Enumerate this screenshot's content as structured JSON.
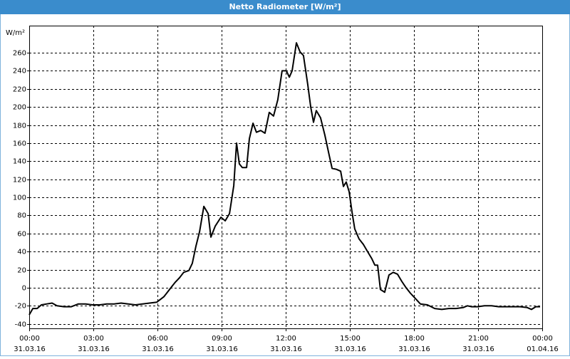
{
  "chart_data": {
    "type": "line",
    "title": "Netto Radiometer [W/m²]",
    "y_unit": "W/m²",
    "x": [
      0,
      0.17,
      0.37,
      0.57,
      0.83,
      1.07,
      1.3,
      1.63,
      1.97,
      2.3,
      2.63,
      2.97,
      3.3,
      3.63,
      3.97,
      4.3,
      4.63,
      4.97,
      5.3,
      5.63,
      5.97,
      6.3,
      6.63,
      6.83,
      7.03,
      7.23,
      7.47,
      7.63,
      7.8,
      7.97,
      8.17,
      8.37,
      8.5,
      8.7,
      8.97,
      9.17,
      9.37,
      9.57,
      9.7,
      9.83,
      9.97,
      10.17,
      10.3,
      10.47,
      10.63,
      10.83,
      11.03,
      11.23,
      11.43,
      11.63,
      11.83,
      12.03,
      12.17,
      12.3,
      12.5,
      12.67,
      12.83,
      13.03,
      13.17,
      13.3,
      13.43,
      13.63,
      13.83,
      14.03,
      14.17,
      14.37,
      14.57,
      14.7,
      14.83,
      14.97,
      15.1,
      15.23,
      15.43,
      15.63,
      15.83,
      16.03,
      16.17,
      16.3,
      16.43,
      16.63,
      16.83,
      17.03,
      17.23,
      17.43,
      17.63,
      17.83,
      18.03,
      18.3,
      18.63,
      18.97,
      19.3,
      19.63,
      19.97,
      20.3,
      20.5,
      20.7,
      20.97,
      21.3,
      21.63,
      21.97,
      22.3,
      22.63,
      22.97,
      23.3,
      23.5,
      23.7,
      23.9
    ],
    "values": [
      -30,
      -23,
      -23,
      -19,
      -18,
      -17,
      -20,
      -21,
      -21,
      -18,
      -18,
      -19,
      -19,
      -18,
      -18,
      -17,
      -18,
      -19,
      -18,
      -17,
      -16,
      -10,
      0,
      6,
      11,
      17,
      19,
      27,
      46,
      62,
      90,
      82,
      56,
      68,
      78,
      74,
      82,
      113,
      160,
      137,
      133,
      133,
      165,
      182,
      172,
      174,
      171,
      194,
      190,
      208,
      240,
      240,
      233,
      240,
      271,
      261,
      257,
      225,
      200,
      183,
      196,
      188,
      169,
      147,
      132,
      131,
      129,
      112,
      117,
      106,
      84,
      65,
      54,
      48,
      40,
      32,
      25,
      25,
      -2,
      -5,
      14,
      17,
      15,
      7,
      0,
      -6,
      -11,
      -18,
      -19,
      -23,
      -24,
      -23,
      -23,
      -22,
      -20,
      -21,
      -21,
      -20,
      -20,
      -21,
      -21,
      -21,
      -21,
      -22,
      -24,
      -21,
      -21
    ],
    "color": "#000000",
    "xlim": [
      0,
      24
    ],
    "xticks": [
      {
        "value": 0,
        "label": "00:00"
      },
      {
        "value": 3,
        "label": "03:00"
      },
      {
        "value": 6,
        "label": "06:00"
      },
      {
        "value": 9,
        "label": "09:00"
      },
      {
        "value": 12,
        "label": "12:00"
      },
      {
        "value": 15,
        "label": "15:00"
      },
      {
        "value": 18,
        "label": "18:00"
      },
      {
        "value": 21,
        "label": "21:00"
      },
      {
        "value": 24,
        "label": "00:00"
      }
    ],
    "xtick_dates": [
      "31.03.16",
      "31.03.16",
      "31.03.16",
      "31.03.16",
      "31.03.16",
      "31.03.16",
      "31.03.16",
      "31.03.16",
      "01.04.16"
    ],
    "ylim": [
      -45,
      290
    ],
    "yticks": [
      -40,
      -20,
      0,
      20,
      40,
      60,
      80,
      100,
      120,
      140,
      160,
      180,
      200,
      220,
      240,
      260
    ],
    "grid": true
  }
}
